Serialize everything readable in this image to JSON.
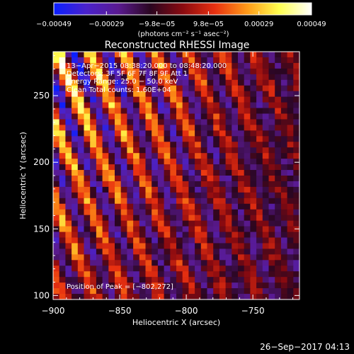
{
  "chart_data": {
    "type": "heatmap",
    "title": "Reconstructed RHESSI Image",
    "xlabel": "Heliocentric X (arcsec)",
    "ylabel": "Heliocentric Y (arcsec)",
    "xlim": [
      -900,
      -715
    ],
    "ylim": [
      97,
      283
    ],
    "x_ticks": [
      {
        "value": -900,
        "label": "−900"
      },
      {
        "value": -850,
        "label": "−850"
      },
      {
        "value": -800,
        "label": "−800"
      },
      {
        "value": -750,
        "label": "−750"
      }
    ],
    "y_ticks": [
      {
        "value": 100,
        "label": "100"
      },
      {
        "value": 150,
        "label": "150"
      },
      {
        "value": 200,
        "label": "200"
      },
      {
        "value": 250,
        "label": "250"
      }
    ],
    "colorbar": {
      "range": [
        -0.00049,
        0.00049
      ],
      "ticks": [
        {
          "value": -0.00049,
          "label": "−0.00049"
        },
        {
          "value": -0.00029,
          "label": "−0.00029"
        },
        {
          "value": -9.8e-05,
          "label": "−9.8e−05"
        },
        {
          "value": 9.8e-05,
          "label": "9.8e−05"
        },
        {
          "value": 0.00029,
          "label": "0.00029"
        },
        {
          "value": 0.00049,
          "label": "0.00049"
        }
      ],
      "unit_label": "(photons cm⁻² s⁻¹ asec⁻²)",
      "colors": [
        "#0a1fff",
        "#4a22cc",
        "#5a1a90",
        "#2a0620",
        "#8a0a10",
        "#e83010",
        "#ff9a18",
        "#ffff50",
        "#ffffff"
      ]
    },
    "annotations": [
      "13−Apr−2015 08:38:20.000 to 08:48:20.000",
      "Detectors: 3F 5F 6F 7F 8F 9F Att 1",
      "Energy Range: 25.0 − 50.0 keV",
      "Clean    Total counts: 1.60E+04"
    ],
    "peak_label": "Position of Peak = [−802,272]",
    "peak_position": [
      -802,
      272
    ],
    "grid": false,
    "pattern": "diagonal fringe stripes, strongest toward the top-left corner, weaker negative (blue/purple) values lower-right"
  },
  "footer": {
    "timestamp": "26−Sep−2017 04:13"
  }
}
